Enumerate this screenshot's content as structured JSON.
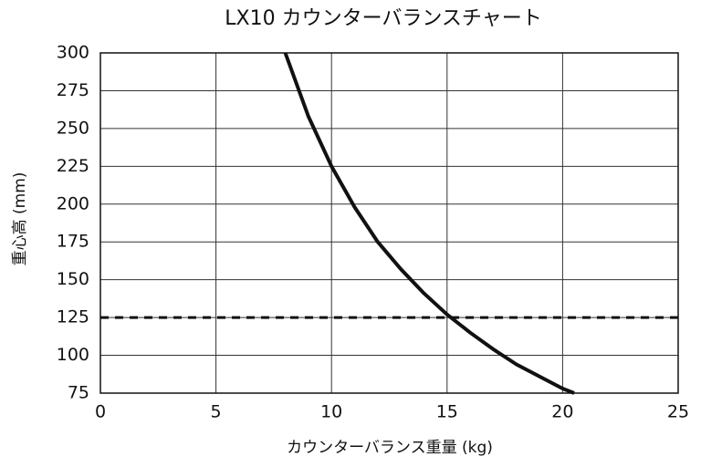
{
  "chart_data": {
    "type": "line",
    "title": "LX10 カウンターバランスチャート",
    "x_label": "カウンターバランス重量 (kg)",
    "y_label": "重心高 (mm)",
    "x": [
      8,
      9,
      10,
      11,
      12,
      13,
      14,
      15,
      16,
      17,
      18,
      19,
      20,
      20.5
    ],
    "series": [
      {
        "color": "#111111",
        "values": [
          300,
          258,
          225,
          198,
          175,
          157,
          141,
          127,
          115,
          104,
          94,
          86,
          78,
          75
        ]
      }
    ],
    "reference_line": 125,
    "xlim": [
      0,
      25
    ],
    "xticks": [
      0,
      5,
      10,
      15,
      20,
      25
    ],
    "ylim": [
      75,
      300
    ],
    "yticks": [
      75,
      100,
      125,
      150,
      175,
      200,
      225,
      250,
      275,
      300
    ],
    "grid": true
  }
}
